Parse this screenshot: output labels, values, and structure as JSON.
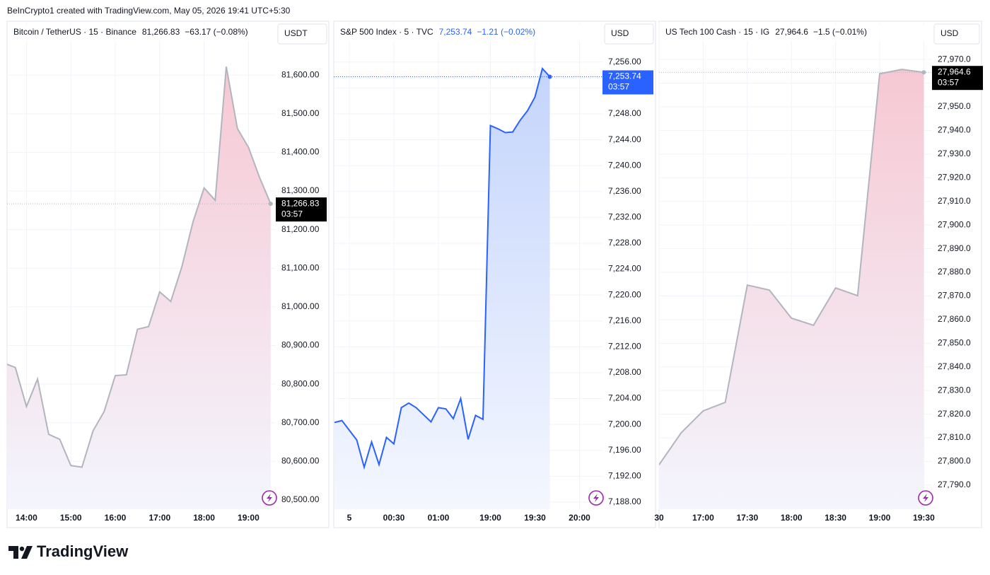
{
  "header": {
    "credit": "BeInCrypto1 created with TradingView.com, May 05, 2026 19:41 UTC+5:30"
  },
  "footer": {
    "brand": "TradingView"
  },
  "chart_data": [
    {
      "type": "area",
      "title": "Bitcoin / TetherUS · 15 · Binance",
      "price": "81,266.83",
      "change": "−63.17 (−0.08%)",
      "countdown": "03:57",
      "unit": "USDT",
      "color": "#b2b5be",
      "fill_colors": [
        "#f6c8d3",
        "#f4f5fd"
      ],
      "header_color": "#131722",
      "badge_color": "#000000",
      "grid": true,
      "categories": [
        null,
        null,
        "14:00",
        null,
        null,
        null,
        "15:00",
        null,
        null,
        null,
        "16:00",
        null,
        null,
        null,
        "17:00",
        null,
        null,
        null,
        "18:00",
        null,
        null,
        null,
        "19:00",
        null,
        null
      ],
      "values": [
        80854,
        80843,
        80742,
        80813,
        80670,
        80657,
        80589,
        80585,
        80679,
        80729,
        80822,
        80824,
        80942,
        80949,
        81039,
        81014,
        81104,
        81220,
        81308,
        81276,
        81622,
        81462,
        81413,
        81335,
        81266.83
      ],
      "ylim": [
        80476,
        81736
      ],
      "yticks": [
        {
          "value": 80500,
          "label": "80,500.00"
        },
        {
          "value": 80600,
          "label": "80,600.00"
        },
        {
          "value": 80700,
          "label": "80,700.00"
        },
        {
          "value": 80800,
          "label": "80,800.00"
        },
        {
          "value": 80900,
          "label": "80,900.00"
        },
        {
          "value": 81000,
          "label": "81,000.00"
        },
        {
          "value": 81100,
          "label": "81,100.00"
        },
        {
          "value": 81200,
          "label": "81,200.00"
        },
        {
          "value": 81300,
          "label": "81,300.00"
        },
        {
          "value": 81400,
          "label": "81,400.00"
        },
        {
          "value": 81500,
          "label": "81,500.00"
        },
        {
          "value": 81600,
          "label": "81,600.00"
        }
      ]
    },
    {
      "type": "area",
      "title": "S&P 500 Index · 5 · TVC",
      "price": "7,253.74",
      "change": "−1.21 (−0.02%)",
      "countdown": "03:57",
      "unit": "USD",
      "color": "#2962ff",
      "fill_colors": [
        "#c4d4fc",
        "#f4f7fe"
      ],
      "header_color": "#2962ff",
      "badge_color": "#2962ff",
      "grid": true,
      "categories": [
        null,
        null,
        "5",
        null,
        null,
        null,
        null,
        null,
        "00:30",
        null,
        null,
        null,
        null,
        null,
        "01:00",
        null,
        null,
        null,
        null,
        null,
        null,
        "19:00",
        null,
        null,
        null,
        null,
        null,
        "19:30",
        null,
        null,
        null,
        null,
        null,
        "20:00"
      ],
      "values": [
        7200.3,
        7200.6,
        7199.1,
        7197.6,
        7193.4,
        7197.3,
        7193.8,
        7198.0,
        7197.0,
        7202.6,
        7203.3,
        7202.6,
        7201.5,
        7200.4,
        7202.6,
        7202.4,
        7200.9,
        7204.0,
        7197.7,
        7201.4,
        7200.8,
        7246.2,
        7245.7,
        7245.1,
        7245.2,
        7247.0,
        7248.5,
        7250.6,
        7255.0,
        7253.74,
        null,
        null,
        null,
        null
      ],
      "ylim": [
        7186.9,
        7262.1
      ],
      "yticks": [
        {
          "value": 7188,
          "label": "7,188.00"
        },
        {
          "value": 7192,
          "label": "7,192.00"
        },
        {
          "value": 7196,
          "label": "7,196.00"
        },
        {
          "value": 7200,
          "label": "7,200.00"
        },
        {
          "value": 7204,
          "label": "7,204.00"
        },
        {
          "value": 7208,
          "label": "7,208.00"
        },
        {
          "value": 7212,
          "label": "7,212.00"
        },
        {
          "value": 7216,
          "label": "7,216.00"
        },
        {
          "value": 7220,
          "label": "7,220.00"
        },
        {
          "value": 7224,
          "label": "7,224.00"
        },
        {
          "value": 7228,
          "label": "7,228.00"
        },
        {
          "value": 7232,
          "label": "7,232.00"
        },
        {
          "value": 7236,
          "label": "7,236.00"
        },
        {
          "value": 7240,
          "label": "7,240.00"
        },
        {
          "value": 7244,
          "label": "7,244.00"
        },
        {
          "value": 7248,
          "label": "7,248.00"
        },
        {
          "value": 7252,
          "label": "7,252.00"
        },
        {
          "value": 7256,
          "label": "7,256.00"
        }
      ]
    },
    {
      "type": "area",
      "title": "US Tech 100 Cash · 15 · IG",
      "price": "27,964.6",
      "change": "−1.5 (−0.01%)",
      "countdown": "03:57",
      "unit": "USD",
      "color": "#b2b5be",
      "fill_colors": [
        "#f6c8d3",
        "#f4f5fd"
      ],
      "header_color": "#131722",
      "badge_color": "#000000",
      "grid": true,
      "categories": [
        "30",
        null,
        "17:00",
        null,
        "17:30",
        null,
        "18:00",
        null,
        "18:30",
        null,
        "19:00",
        null,
        "19:30"
      ],
      "values": [
        27798.6,
        27812.1,
        27821.4,
        27825.0,
        27874.6,
        27872.5,
        27860.6,
        27857.6,
        27873.4,
        27870.1,
        27964.0,
        27965.8,
        27964.6
      ],
      "ylim": [
        27779.8,
        27985.6
      ],
      "yticks": [
        {
          "value": 27790,
          "label": "27,790.0"
        },
        {
          "value": 27800,
          "label": "27,800.0"
        },
        {
          "value": 27810,
          "label": "27,810.0"
        },
        {
          "value": 27820,
          "label": "27,820.0"
        },
        {
          "value": 27830,
          "label": "27,830.0"
        },
        {
          "value": 27840,
          "label": "27,840.0"
        },
        {
          "value": 27850,
          "label": "27,850.0"
        },
        {
          "value": 27860,
          "label": "27,860.0"
        },
        {
          "value": 27870,
          "label": "27,870.0"
        },
        {
          "value": 27880,
          "label": "27,880.0"
        },
        {
          "value": 27890,
          "label": "27,890.0"
        },
        {
          "value": 27900,
          "label": "27,900.0"
        },
        {
          "value": 27910,
          "label": "27,910.0"
        },
        {
          "value": 27920,
          "label": "27,920.0"
        },
        {
          "value": 27930,
          "label": "27,930.0"
        },
        {
          "value": 27940,
          "label": "27,940.0"
        },
        {
          "value": 27950,
          "label": "27,950.0"
        },
        {
          "value": 27960,
          "label": "27,960.0"
        },
        {
          "value": 27970,
          "label": "27,970.0"
        }
      ]
    }
  ]
}
